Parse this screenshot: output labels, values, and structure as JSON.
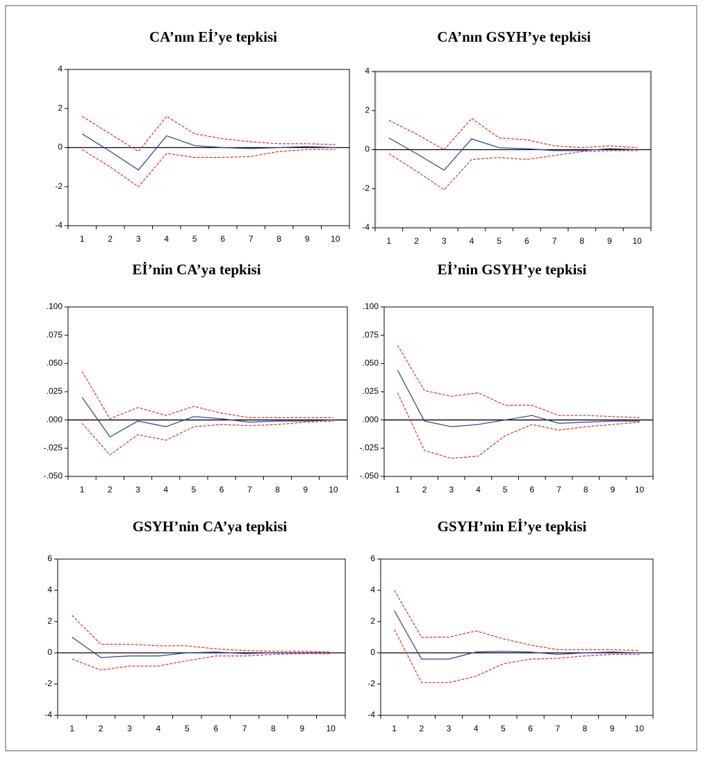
{
  "chart_data": [
    {
      "type": "line",
      "title": "CA’nın Eİ’ye tepkisi",
      "categories": [
        "1",
        "2",
        "3",
        "4",
        "5",
        "6",
        "7",
        "8",
        "9",
        "10"
      ],
      "ylim": [
        -4,
        4
      ],
      "yticks": [
        -4,
        -2,
        0,
        2,
        4
      ],
      "series": [
        {
          "color": "#2a3c9c",
          "line_style": "solid",
          "values": [
            0.7,
            -0.2,
            -1.15,
            0.6,
            0.1,
            0.0,
            -0.05,
            0.0,
            0.05,
            0.0
          ]
        },
        {
          "color": "#e8282a",
          "line_style": "dashed",
          "values": [
            1.6,
            0.7,
            -0.2,
            1.6,
            0.7,
            0.45,
            0.3,
            0.2,
            0.2,
            0.15
          ]
        },
        {
          "color": "#e8282a",
          "line_style": "dashed",
          "values": [
            -0.1,
            -1.0,
            -2.0,
            -0.3,
            -0.5,
            -0.5,
            -0.45,
            -0.2,
            -0.1,
            -0.1
          ]
        }
      ]
    },
    {
      "type": "line",
      "title": "CA’nın GSYH’ye tepkisi",
      "categories": [
        "1",
        "2",
        "3",
        "4",
        "5",
        "6",
        "7",
        "8",
        "9",
        "10"
      ],
      "ylim": [
        -4,
        4
      ],
      "yticks": [
        -4,
        -2,
        0,
        2,
        4
      ],
      "series": [
        {
          "color": "#2a3c9c",
          "line_style": "solid",
          "values": [
            0.6,
            -0.2,
            -1.05,
            0.55,
            0.1,
            0.05,
            -0.05,
            -0.05,
            0.05,
            0.0
          ]
        },
        {
          "color": "#e8282a",
          "line_style": "dashed",
          "values": [
            1.5,
            0.8,
            0.0,
            1.6,
            0.6,
            0.5,
            0.2,
            0.1,
            0.2,
            0.1
          ]
        },
        {
          "color": "#e8282a",
          "line_style": "dashed",
          "values": [
            -0.2,
            -1.1,
            -2.05,
            -0.5,
            -0.4,
            -0.5,
            -0.3,
            -0.1,
            -0.05,
            -0.05
          ]
        }
      ]
    },
    {
      "type": "line",
      "title": "Eİ’nin CA’ya tepkisi",
      "categories": [
        "1",
        "2",
        "3",
        "4",
        "5",
        "6",
        "7",
        "8",
        "9",
        "10"
      ],
      "ylim": [
        -0.05,
        0.1
      ],
      "yticks": [
        {
          "value": -0.05,
          "label": "-.050"
        },
        {
          "value": -0.025,
          "label": "-.025"
        },
        {
          "value": 0,
          "label": ".000"
        },
        {
          "value": 0.025,
          "label": ".025"
        },
        {
          "value": 0.05,
          "label": ".050"
        },
        {
          "value": 0.075,
          "label": ".075"
        },
        {
          "value": 0.1,
          "label": ".100"
        }
      ],
      "series": [
        {
          "color": "#2a3c9c",
          "line_style": "solid",
          "values": [
            0.02,
            -0.015,
            -0.001,
            -0.006,
            0.003,
            0.001,
            -0.002,
            -0.001,
            -0.001,
            0.0
          ]
        },
        {
          "color": "#e8282a",
          "line_style": "dashed",
          "values": [
            0.043,
            0.001,
            0.011,
            0.004,
            0.012,
            0.006,
            0.002,
            0.002,
            0.002,
            0.002
          ]
        },
        {
          "color": "#e8282a",
          "line_style": "dashed",
          "values": [
            -0.003,
            -0.031,
            -0.013,
            -0.018,
            -0.006,
            -0.004,
            -0.005,
            -0.004,
            -0.002,
            -0.001
          ]
        }
      ]
    },
    {
      "type": "line",
      "title": "Eİ’nin GSYH’ye tepkisi",
      "categories": [
        "1",
        "2",
        "3",
        "4",
        "5",
        "6",
        "7",
        "8",
        "9",
        "10"
      ],
      "ylim": [
        -0.05,
        0.1
      ],
      "yticks": [
        {
          "value": -0.05,
          "label": "-.050"
        },
        {
          "value": -0.025,
          "label": "-.025"
        },
        {
          "value": 0,
          "label": ".000"
        },
        {
          "value": 0.025,
          "label": ".025"
        },
        {
          "value": 0.05,
          "label": ".050"
        },
        {
          "value": 0.075,
          "label": ".075"
        },
        {
          "value": 0.1,
          "label": ".100"
        }
      ],
      "series": [
        {
          "color": "#2a3c9c",
          "line_style": "solid",
          "values": [
            0.044,
            -0.001,
            -0.006,
            -0.004,
            0.0,
            0.004,
            -0.003,
            -0.002,
            -0.001,
            -0.001
          ]
        },
        {
          "color": "#e8282a",
          "line_style": "dashed",
          "values": [
            0.066,
            0.026,
            0.021,
            0.024,
            0.013,
            0.013,
            0.004,
            0.004,
            0.003,
            0.002
          ]
        },
        {
          "color": "#e8282a",
          "line_style": "dashed",
          "values": [
            0.024,
            -0.027,
            -0.034,
            -0.032,
            -0.014,
            -0.004,
            -0.009,
            -0.006,
            -0.004,
            -0.002
          ]
        }
      ]
    },
    {
      "type": "line",
      "title": "GSYH’nin CA’ya tepkisi",
      "categories": [
        "1",
        "2",
        "3",
        "4",
        "5",
        "6",
        "7",
        "8",
        "9",
        "10"
      ],
      "ylim": [
        -4,
        6
      ],
      "yticks": [
        -4,
        -2,
        0,
        2,
        4,
        6
      ],
      "series": [
        {
          "color": "#2a3c9c",
          "line_style": "solid",
          "values": [
            1.0,
            -0.3,
            -0.2,
            -0.2,
            0.0,
            0.05,
            -0.05,
            0.0,
            0.0,
            0.0
          ]
        },
        {
          "color": "#e8282a",
          "line_style": "dashed",
          "values": [
            2.4,
            0.55,
            0.55,
            0.45,
            0.45,
            0.25,
            0.15,
            0.1,
            0.1,
            0.05
          ]
        },
        {
          "color": "#e8282a",
          "line_style": "dashed",
          "values": [
            -0.4,
            -1.1,
            -0.85,
            -0.85,
            -0.5,
            -0.2,
            -0.2,
            -0.1,
            -0.05,
            -0.05
          ]
        }
      ]
    },
    {
      "type": "line",
      "title": "GSYH’nin Eİ’ye tepkisi",
      "categories": [
        "1",
        "2",
        "3",
        "4",
        "5",
        "6",
        "7",
        "8",
        "9",
        "10"
      ],
      "ylim": [
        -4,
        6
      ],
      "yticks": [
        -4,
        -2,
        0,
        2,
        4,
        6
      ],
      "series": [
        {
          "color": "#2a3c9c",
          "line_style": "solid",
          "values": [
            2.7,
            -0.4,
            -0.4,
            0.05,
            0.1,
            0.05,
            -0.1,
            0.0,
            0.05,
            0.0
          ]
        },
        {
          "color": "#e8282a",
          "line_style": "dashed",
          "values": [
            4.0,
            1.0,
            1.0,
            1.4,
            0.9,
            0.5,
            0.2,
            0.2,
            0.2,
            0.15
          ]
        },
        {
          "color": "#e8282a",
          "line_style": "dashed",
          "values": [
            1.5,
            -1.9,
            -1.9,
            -1.5,
            -0.7,
            -0.4,
            -0.35,
            -0.2,
            -0.1,
            -0.1
          ]
        }
      ]
    }
  ]
}
